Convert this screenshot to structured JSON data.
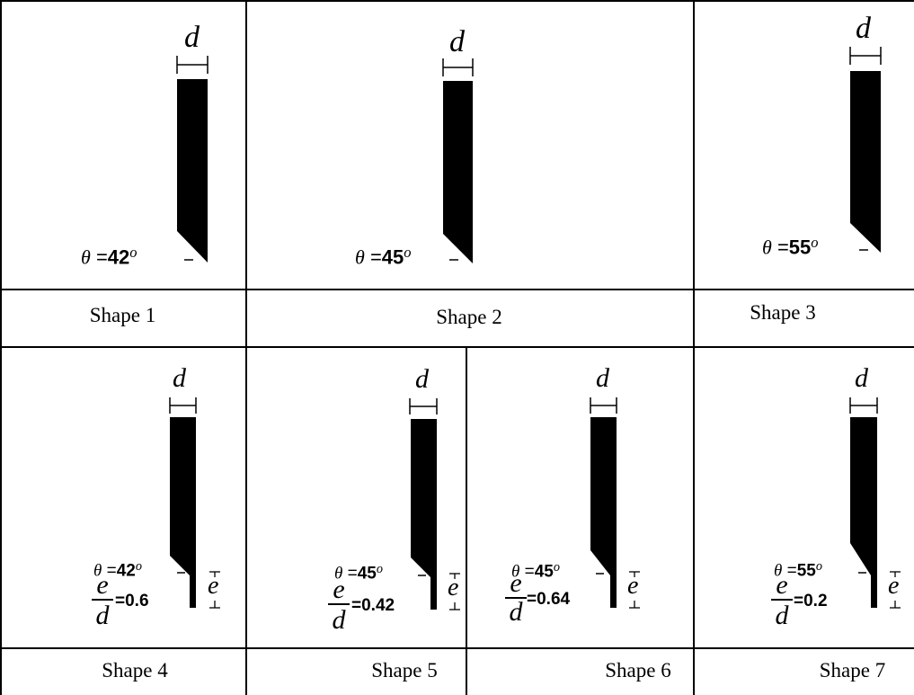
{
  "captions": [
    "Shape 1",
    "Shape 2",
    "Shape 3",
    "Shape 4",
    "Shape 5",
    "Shape 6",
    "Shape 7"
  ],
  "dim_symbol": "d",
  "theta_symbol": "θ",
  "eccentricity_symbol": "e",
  "shapes": [
    {
      "theta": "42",
      "ratio": null
    },
    {
      "theta": "45",
      "ratio": null
    },
    {
      "theta": "55",
      "ratio": null
    },
    {
      "theta": "42",
      "ratio": "=0.6"
    },
    {
      "theta": "45",
      "ratio": "=0.42"
    },
    {
      "theta": "45",
      "ratio": "=0.64"
    },
    {
      "theta": "55",
      "ratio": "=0.2"
    }
  ]
}
